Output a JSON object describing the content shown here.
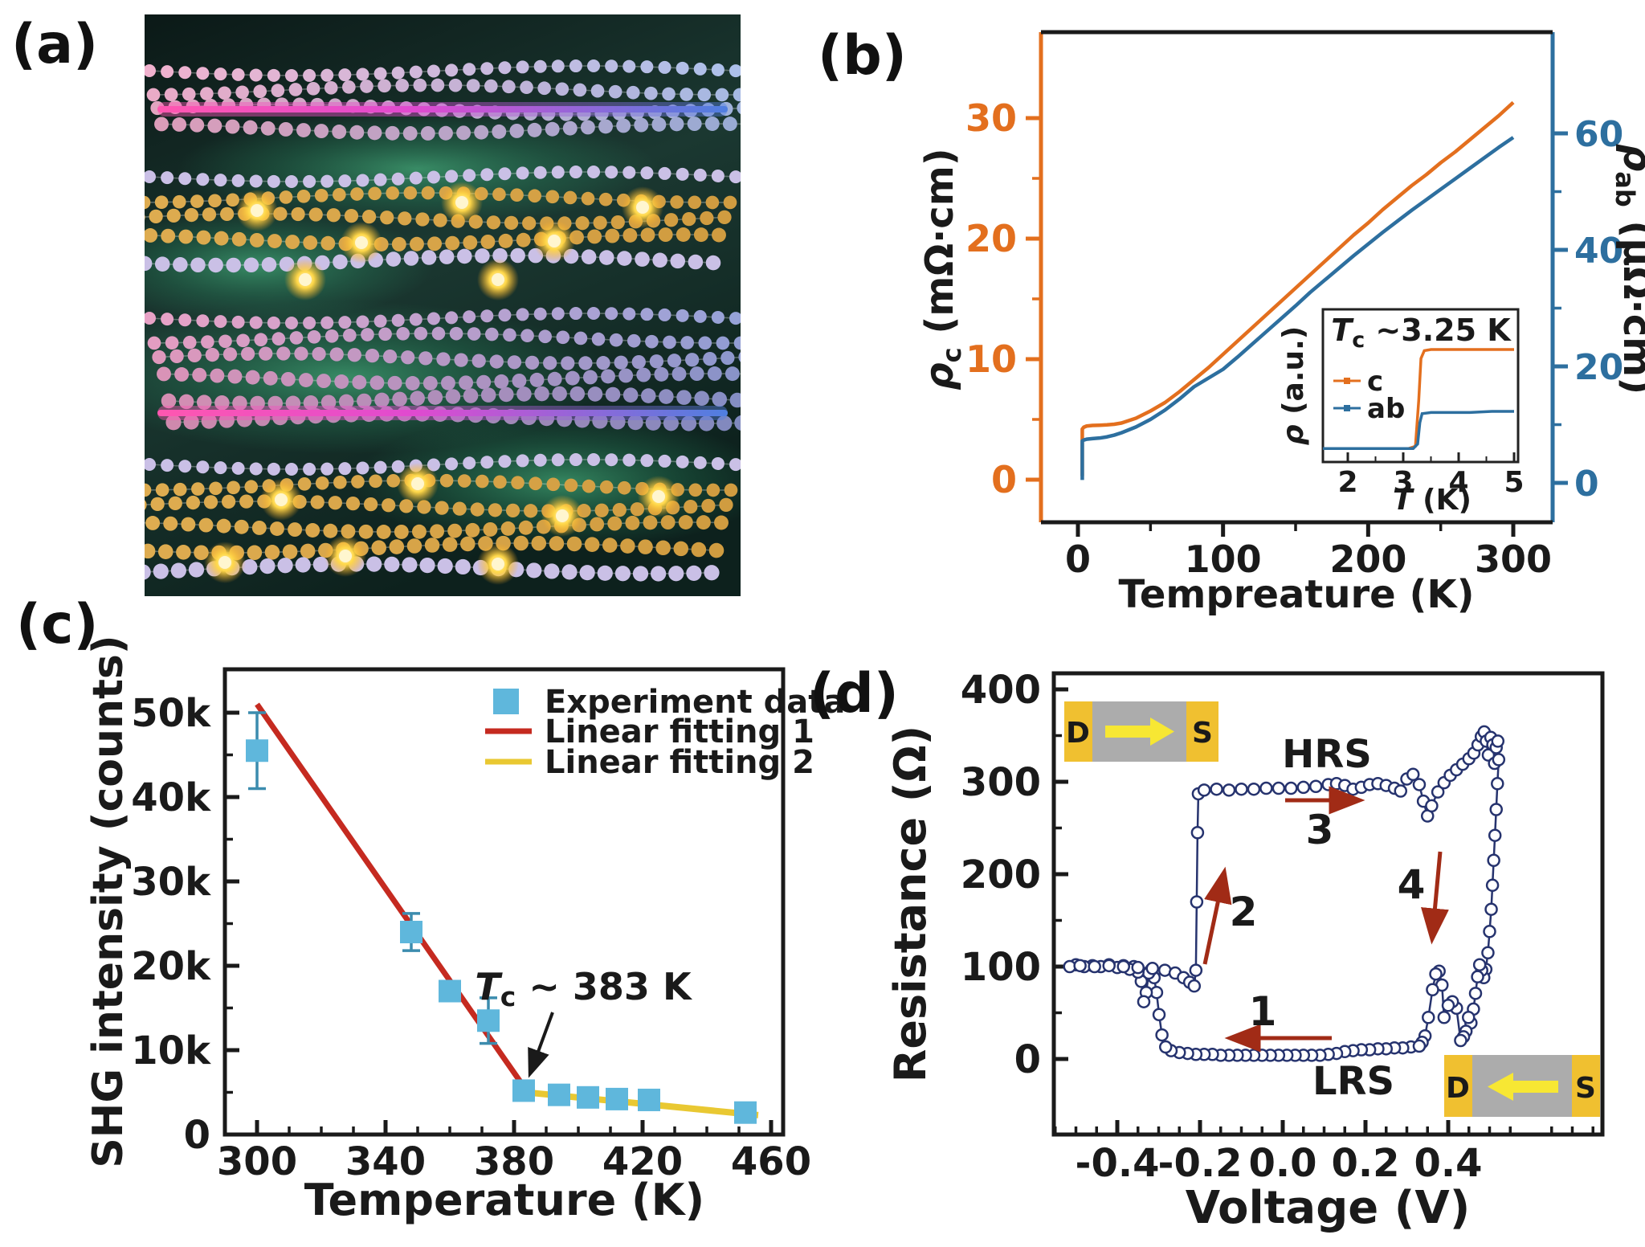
{
  "palette": {
    "orange": "#E36F1E",
    "steel_blue": "#2D6F9F",
    "marker_blue": "#5FB7DC",
    "fit_red": "#C52A20",
    "fit_yellow": "#E9C832",
    "loop_navy": "#26336E",
    "arrow_dark_red": "#A12B16",
    "pad_yellow": "#F0C030",
    "channel_gray": "#ACACAC",
    "device_arrow_yellow": "#F7E733",
    "axis_black": "#1A1A1A"
  },
  "panels": {
    "a": {
      "label": "(a)"
    },
    "b": {
      "label": "(b)"
    },
    "c": {
      "label": "(c)"
    },
    "d": {
      "label": "(d)"
    }
  },
  "chart_data": [
    {
      "id": "b",
      "type": "line",
      "xlabel": "Tempreature (K)",
      "x_ticks": {
        "values": [
          0,
          100,
          200,
          300
        ],
        "labels": [
          "0",
          "100",
          "200",
          "300"
        ]
      },
      "y_left": {
        "label_pre": "ρ",
        "label_sub": "c",
        "label_post": " (mΩ·cm)",
        "ticks": [
          0,
          10,
          20,
          30
        ],
        "labels": [
          "0",
          "10",
          "20",
          "30"
        ],
        "color": "#E36F1E"
      },
      "y_right": {
        "label_pre": "ρ",
        "label_sub": "ab",
        "label_post": " (μΩ·cm)",
        "ticks": [
          0,
          20,
          40,
          60
        ],
        "labels": [
          "0",
          "20",
          "40",
          "60"
        ],
        "color": "#2D6F9F"
      },
      "series": [
        {
          "name": "c",
          "axis": "left",
          "color": "#E36F1E",
          "T": [
            3,
            3,
            4,
            6,
            10,
            15,
            20,
            25,
            30,
            35,
            40,
            50,
            60,
            70,
            80,
            90,
            100,
            110,
            120,
            130,
            140,
            150,
            160,
            170,
            180,
            190,
            200,
            210,
            220,
            230,
            240,
            250,
            260,
            270,
            280,
            290,
            300
          ],
          "v": [
            0.3,
            4.2,
            4.35,
            4.45,
            4.5,
            4.52,
            4.55,
            4.6,
            4.7,
            4.9,
            5.1,
            5.7,
            6.4,
            7.3,
            8.3,
            9.3,
            10.4,
            11.5,
            12.6,
            13.7,
            14.8,
            15.9,
            17.0,
            18.1,
            19.2,
            20.3,
            21.3,
            22.4,
            23.4,
            24.4,
            25.3,
            26.3,
            27.2,
            28.2,
            29.2,
            30.2,
            31.3
          ]
        },
        {
          "name": "ab",
          "axis": "right",
          "color": "#2D6F9F",
          "T": [
            3,
            3,
            4,
            6,
            10,
            15,
            20,
            25,
            30,
            35,
            40,
            50,
            60,
            70,
            80,
            90,
            100,
            110,
            120,
            130,
            140,
            150,
            160,
            170,
            180,
            190,
            200,
            210,
            220,
            230,
            240,
            250,
            260,
            270,
            280,
            290,
            300
          ],
          "v": [
            0.5,
            7.2,
            7.35,
            7.5,
            7.6,
            7.7,
            7.9,
            8.2,
            8.6,
            9.1,
            9.6,
            10.9,
            12.5,
            14.4,
            16.5,
            18.0,
            19.5,
            21.6,
            23.8,
            26.0,
            28.2,
            30.4,
            32.7,
            34.8,
            36.9,
            39.0,
            41.0,
            43.0,
            44.9,
            46.8,
            48.6,
            50.4,
            52.2,
            54.0,
            55.8,
            57.6,
            59.3
          ]
        }
      ],
      "inset": {
        "title_pre": "T",
        "title_sub": "c",
        "title_post": " ~3.25 K",
        "ylabel_pre": "ρ",
        "ylabel_post": " (a.u.)",
        "xlabel_pre": "T",
        "xlabel_post": " (K)",
        "x_ticks": {
          "values": [
            2,
            3,
            4,
            5
          ],
          "labels": [
            "2",
            "3",
            "4",
            "5"
          ]
        },
        "legend": [
          "c",
          "ab"
        ],
        "series": [
          {
            "name": "c",
            "color": "#E36F1E",
            "pts": [
              [
                1.55,
                0.02
              ],
              [
                2.2,
                0.02
              ],
              [
                2.8,
                0.02
              ],
              [
                3.1,
                0.02
              ],
              [
                3.22,
                0.04
              ],
              [
                3.28,
                0.45
              ],
              [
                3.32,
                0.82
              ],
              [
                3.38,
                0.89
              ],
              [
                3.5,
                0.9
              ],
              [
                3.8,
                0.9
              ],
              [
                4.2,
                0.9
              ],
              [
                4.6,
                0.9
              ],
              [
                5.0,
                0.9
              ]
            ]
          },
          {
            "name": "ab",
            "color": "#2D6F9F",
            "pts": [
              [
                1.55,
                0.02
              ],
              [
                2.2,
                0.02
              ],
              [
                2.8,
                0.02
              ],
              [
                3.18,
                0.02
              ],
              [
                3.26,
                0.06
              ],
              [
                3.3,
                0.25
              ],
              [
                3.34,
                0.33
              ],
              [
                3.5,
                0.34
              ],
              [
                3.8,
                0.34
              ],
              [
                4.2,
                0.34
              ],
              [
                4.6,
                0.35
              ],
              [
                5.0,
                0.35
              ]
            ]
          }
        ]
      }
    },
    {
      "id": "c",
      "type": "scatter",
      "xlabel": "Temperature (K)",
      "ylabel": "SHG intensity (counts)",
      "x_ticks": {
        "values": [
          300,
          340,
          380,
          420,
          460
        ],
        "labels": [
          "300",
          "340",
          "380",
          "420",
          "460"
        ]
      },
      "y_ticks": {
        "values": [
          0,
          10000,
          20000,
          30000,
          40000,
          50000
        ],
        "labels": [
          "0",
          "10k",
          "20k",
          "30k",
          "40k",
          "50k"
        ]
      },
      "legend": [
        "Experiment data",
        "Linear fitting 1",
        "Linear fitting 2"
      ],
      "marker_color": "#5FB7DC",
      "points": [
        [
          300,
          45500,
          4500
        ],
        [
          348,
          24000,
          2200
        ],
        [
          360,
          17000,
          1100
        ],
        [
          372,
          13500,
          2700
        ],
        [
          383,
          5200,
          900
        ],
        [
          394,
          4700,
          400
        ],
        [
          403,
          4400,
          400
        ],
        [
          412,
          4200,
          400
        ],
        [
          422,
          4100,
          400
        ],
        [
          452,
          2600,
          1000
        ]
      ],
      "fit1": {
        "color": "#C52A20",
        "from": [
          300,
          51000
        ],
        "to": [
          385,
          4600
        ]
      },
      "fit2": {
        "color": "#E9C832",
        "from": [
          381,
          5100
        ],
        "to": [
          456,
          2300
        ]
      },
      "annotation": {
        "pre": "T",
        "sub": "c",
        "post": " ~ 383 K"
      }
    },
    {
      "id": "d",
      "type": "line",
      "xlabel": "Voltage (V)",
      "ylabel": "Resistance (Ω)",
      "x_ticks": {
        "values": [
          -0.4,
          -0.2,
          0,
          0.2,
          0.4
        ],
        "labels": [
          "-0.4",
          "-0.2",
          "0.0",
          "0.2",
          "0.4"
        ]
      },
      "y_ticks": {
        "values": [
          0,
          100,
          200,
          300,
          400
        ],
        "labels": [
          "0",
          "100",
          "200",
          "300",
          "400"
        ]
      },
      "state_labels": {
        "high": "HRS",
        "low": "LRS"
      },
      "arrow_labels": [
        "1",
        "2",
        "3",
        "4"
      ],
      "curve_color": "#26336E",
      "arrow_color": "#A12B16",
      "insets": [
        {
          "d": "D",
          "s": "S",
          "direction": "right"
        },
        {
          "d": "D",
          "s": "S",
          "direction": "left"
        }
      ],
      "loop": [
        [
          0.33,
          14
        ],
        [
          0.31,
          13
        ],
        [
          0.29,
          12
        ],
        [
          0.27,
          12
        ],
        [
          0.25,
          11
        ],
        [
          0.23,
          11
        ],
        [
          0.21,
          10
        ],
        [
          0.19,
          10
        ],
        [
          0.17,
          9
        ],
        [
          0.15,
          8
        ],
        [
          0.13,
          6
        ],
        [
          0.11,
          5
        ],
        [
          0.09,
          4
        ],
        [
          0.07,
          4
        ],
        [
          0.05,
          4
        ],
        [
          0.03,
          4
        ],
        [
          0.01,
          4
        ],
        [
          -0.01,
          4
        ],
        [
          -0.03,
          4
        ],
        [
          -0.05,
          4
        ],
        [
          -0.07,
          4
        ],
        [
          -0.09,
          4
        ],
        [
          -0.11,
          4
        ],
        [
          -0.13,
          4
        ],
        [
          -0.15,
          4
        ],
        [
          -0.17,
          5
        ],
        [
          -0.19,
          5
        ],
        [
          -0.21,
          5
        ],
        [
          -0.23,
          6
        ],
        [
          -0.25,
          7
        ],
        [
          -0.27,
          9
        ],
        [
          -0.283,
          13
        ],
        [
          -0.292,
          26
        ],
        [
          -0.299,
          48
        ],
        [
          -0.305,
          72
        ],
        [
          -0.311,
          88
        ],
        [
          -0.317,
          97
        ],
        [
          -0.324,
          93
        ],
        [
          -0.33,
          72
        ],
        [
          -0.336,
          62
        ],
        [
          -0.342,
          84
        ],
        [
          -0.35,
          94
        ],
        [
          -0.36,
          100
        ],
        [
          -0.37,
          97
        ],
        [
          -0.385,
          101
        ],
        [
          -0.4,
          99
        ],
        [
          -0.42,
          102
        ],
        [
          -0.44,
          100
        ],
        [
          -0.46,
          101
        ],
        [
          -0.48,
          100
        ],
        [
          -0.5,
          102
        ],
        [
          -0.515,
          100
        ],
        [
          -0.49,
          101
        ],
        [
          -0.455,
          100
        ],
        [
          -0.42,
          101
        ],
        [
          -0.385,
          100
        ],
        [
          -0.35,
          99
        ],
        [
          -0.315,
          98
        ],
        [
          -0.285,
          96
        ],
        [
          -0.26,
          93
        ],
        [
          -0.24,
          88
        ],
        [
          -0.225,
          83
        ],
        [
          -0.214,
          79
        ],
        [
          -0.21,
          96
        ],
        [
          -0.208,
          170
        ],
        [
          -0.206,
          245
        ],
        [
          -0.204,
          287
        ],
        [
          -0.19,
          291
        ],
        [
          -0.16,
          292
        ],
        [
          -0.13,
          291
        ],
        [
          -0.1,
          292
        ],
        [
          -0.07,
          292
        ],
        [
          -0.04,
          293
        ],
        [
          -0.01,
          293
        ],
        [
          0.02,
          293
        ],
        [
          0.05,
          294
        ],
        [
          0.08,
          295
        ],
        [
          0.11,
          297
        ],
        [
          0.13,
          298
        ],
        [
          0.15,
          296
        ],
        [
          0.17,
          292
        ],
        [
          0.19,
          294
        ],
        [
          0.21,
          297
        ],
        [
          0.23,
          298
        ],
        [
          0.25,
          296
        ],
        [
          0.27,
          293
        ],
        [
          0.285,
          290
        ],
        [
          0.3,
          303
        ],
        [
          0.315,
          308
        ],
        [
          0.33,
          297
        ],
        [
          0.34,
          279
        ],
        [
          0.35,
          263
        ],
        [
          0.36,
          274
        ],
        [
          0.375,
          289
        ],
        [
          0.39,
          299
        ],
        [
          0.405,
          307
        ],
        [
          0.42,
          313
        ],
        [
          0.435,
          319
        ],
        [
          0.45,
          325
        ],
        [
          0.462,
          331
        ],
        [
          0.472,
          340
        ],
        [
          0.48,
          349
        ],
        [
          0.487,
          354
        ],
        [
          0.492,
          344
        ],
        [
          0.497,
          329
        ],
        [
          0.503,
          348
        ],
        [
          0.508,
          340
        ],
        [
          0.512,
          320
        ],
        [
          0.516,
          337
        ],
        [
          0.52,
          344
        ],
        [
          0.522,
          324
        ],
        [
          0.519,
          298
        ],
        [
          0.516,
          270
        ],
        [
          0.513,
          242
        ],
        [
          0.51,
          215
        ],
        [
          0.507,
          188
        ],
        [
          0.504,
          162
        ],
        [
          0.5,
          138
        ],
        [
          0.496,
          115
        ],
        [
          0.491,
          97
        ],
        [
          0.486,
          88
        ],
        [
          0.481,
          96
        ],
        [
          0.476,
          102
        ],
        [
          0.471,
          89
        ],
        [
          0.466,
          71
        ],
        [
          0.461,
          54
        ],
        [
          0.455,
          39
        ],
        [
          0.449,
          45
        ],
        [
          0.443,
          30
        ],
        [
          0.437,
          24
        ],
        [
          0.43,
          20
        ],
        [
          0.42,
          55
        ],
        [
          0.41,
          62
        ],
        [
          0.4,
          58
        ],
        [
          0.39,
          45
        ],
        [
          0.385,
          80
        ],
        [
          0.378,
          95
        ],
        [
          0.37,
          92
        ],
        [
          0.362,
          75
        ],
        [
          0.352,
          45
        ],
        [
          0.344,
          25
        ],
        [
          0.337,
          18
        ],
        [
          0.33,
          14
        ]
      ]
    }
  ]
}
